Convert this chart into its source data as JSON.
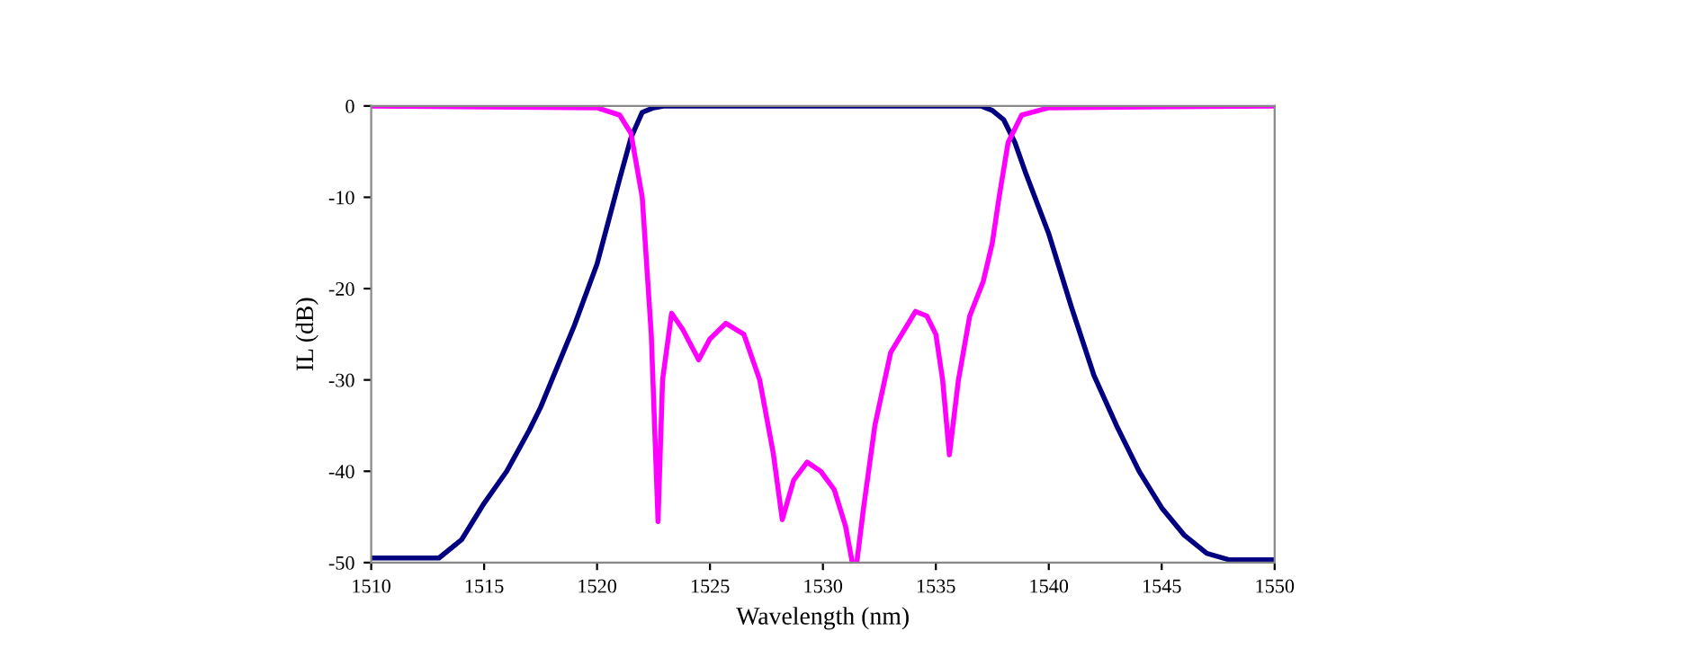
{
  "chart_data": {
    "type": "line",
    "xlabel": "Wavelength (nm)",
    "ylabel": "IL (dB)",
    "xlim": [
      1510,
      1550
    ],
    "xticks": [
      1510,
      1515,
      1520,
      1525,
      1530,
      1535,
      1540,
      1545,
      1550
    ],
    "ylim": [
      -50,
      0
    ],
    "yticks": [
      -50,
      -40,
      -30,
      -20,
      -10,
      0
    ],
    "grid": false,
    "legend": false,
    "marker": "none",
    "line_style": "solid",
    "series": [
      {
        "color": "#000080",
        "x": [
          1510,
          1513,
          1514,
          1515,
          1516,
          1517,
          1517.5,
          1518,
          1519,
          1520,
          1521,
          1521.5,
          1522,
          1522.5,
          1523,
          1530,
          1537,
          1537.5,
          1538,
          1538.5,
          1539,
          1540,
          1541,
          1542,
          1543,
          1544,
          1545,
          1546,
          1547,
          1548,
          1550
        ],
        "values": [
          -49.5,
          -49.5,
          -47.5,
          -43.5,
          -40,
          -35.5,
          -33,
          -30,
          -24,
          -17.3,
          -8,
          -3.5,
          -0.7,
          -0.2,
          0,
          0,
          0,
          -0.5,
          -1.5,
          -4,
          -7.5,
          -14,
          -22,
          -29.5,
          -35,
          -40,
          -44,
          -47,
          -49,
          -49.7,
          -49.7
        ]
      },
      {
        "color": "#ff00ff",
        "x": [
          1510,
          1520,
          1521,
          1521.5,
          1522,
          1522.4,
          1522.7,
          1522.9,
          1523.3,
          1523.8,
          1524.5,
          1525,
          1525.7,
          1526.5,
          1527.2,
          1527.8,
          1528.2,
          1528.7,
          1529.3,
          1529.9,
          1530.5,
          1531,
          1531.3,
          1531.5,
          1531.8,
          1532.3,
          1533,
          1534.1,
          1534.6,
          1535,
          1535.3,
          1535.6,
          1536,
          1536.5,
          1537.1,
          1537.5,
          1537.8,
          1538.2,
          1538.8,
          1540,
          1550
        ],
        "values": [
          0,
          -0.2,
          -1,
          -3,
          -10,
          -25,
          -45.5,
          -30,
          -22.7,
          -24.5,
          -27.8,
          -25.5,
          -23.8,
          -25,
          -30,
          -38,
          -45.3,
          -41,
          -39,
          -40,
          -42,
          -46,
          -50,
          -50,
          -44,
          -35,
          -27,
          -22.5,
          -23,
          -25,
          -30,
          -38.2,
          -30,
          -23,
          -19.2,
          -15,
          -10,
          -4,
          -1,
          -0.2,
          0
        ]
      }
    ]
  }
}
